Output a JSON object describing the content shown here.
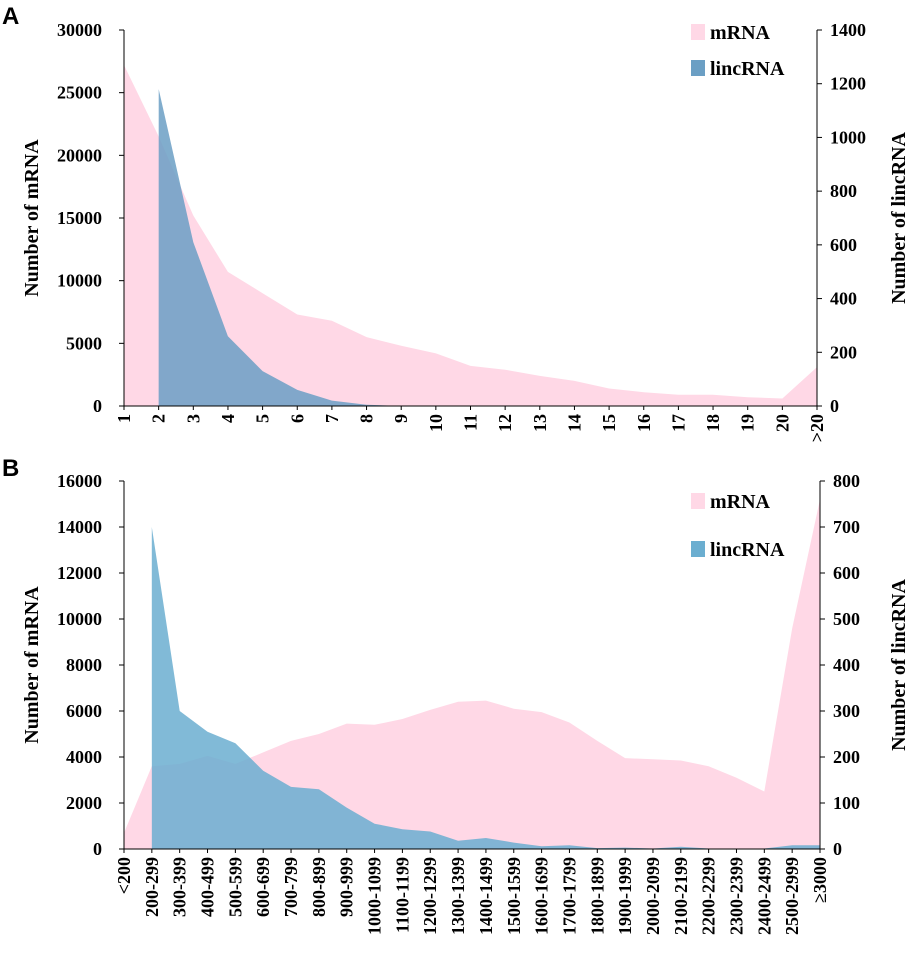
{
  "chart_data": [
    {
      "type": "area",
      "panel_label": "A",
      "categories": [
        "1",
        "2",
        "3",
        "4",
        "5",
        "6",
        "7",
        "8",
        "9",
        "10",
        "11",
        "12",
        "13",
        "14",
        "15",
        "16",
        "17",
        "18",
        "19",
        "20",
        ">20"
      ],
      "series": [
        {
          "name": "mRNA",
          "axis": "left",
          "color": "#ffd8e6",
          "values": [
            27200,
            21500,
            15200,
            10700,
            9000,
            7300,
            6800,
            5500,
            4800,
            4200,
            3200,
            2900,
            2400,
            2000,
            1400,
            1100,
            900,
            900,
            700,
            600,
            3100
          ]
        },
        {
          "name": "lincRNA",
          "axis": "right",
          "color": "#6b9fc4",
          "values": [
            null,
            1180,
            610,
            260,
            130,
            60,
            20,
            5,
            0,
            0,
            0,
            0,
            0,
            0,
            0,
            0,
            0,
            0,
            0,
            0,
            0
          ]
        }
      ],
      "ylabel_left": "Number of mRNA",
      "ylabel_right": "Number of lincRNA",
      "ylim_left": [
        0,
        30000
      ],
      "ylim_right": [
        0,
        1400
      ],
      "yticks_left": [
        "0",
        "5000",
        "10000",
        "15000",
        "20000",
        "25000",
        "30000"
      ],
      "yticks_right": [
        "0",
        "200",
        "400",
        "600",
        "800",
        "1000",
        "1200",
        "1400"
      ],
      "legend": [
        "mRNA",
        "lincRNA"
      ],
      "legend_position": "top-right"
    },
    {
      "type": "area",
      "panel_label": "B",
      "categories": [
        "<200",
        "200-299",
        "300-399",
        "400-499",
        "500-599",
        "600-699",
        "700-799",
        "800-899",
        "900-999",
        "1000-1099",
        "1100-1199",
        "1200-1299",
        "1300-1399",
        "1400-1499",
        "1500-1599",
        "1600-1699",
        "1700-1799",
        "1800-1899",
        "1900-1999",
        "2000-2099",
        "2100-2199",
        "2200-2299",
        "2300-2399",
        "2400-2499",
        "2500-2999",
        "≥3000"
      ],
      "series": [
        {
          "name": "mRNA",
          "axis": "left",
          "color": "#ffd8e6",
          "values": [
            700,
            3600,
            3700,
            4050,
            3700,
            4200,
            4700,
            5000,
            5450,
            5400,
            5650,
            6050,
            6400,
            6450,
            6100,
            5950,
            5500,
            4700,
            3950,
            3900,
            3850,
            3600,
            3100,
            2500,
            9600,
            15200
          ]
        },
        {
          "name": "lincRNA",
          "axis": "right",
          "color": "#6baed0",
          "values": [
            null,
            700,
            300,
            255,
            230,
            170,
            135,
            130,
            90,
            55,
            43,
            38,
            18,
            24,
            14,
            6,
            8,
            2,
            3,
            1,
            5,
            1,
            1,
            1,
            8,
            8
          ]
        }
      ],
      "ylabel_left": "Number of mRNA",
      "ylabel_right": "Number of lincRNA",
      "ylim_left": [
        0,
        16000
      ],
      "ylim_right": [
        0,
        800
      ],
      "yticks_left": [
        "0",
        "2000",
        "4000",
        "6000",
        "8000",
        "10000",
        "12000",
        "14000",
        "16000"
      ],
      "yticks_right": [
        "0",
        "100",
        "200",
        "300",
        "400",
        "500",
        "600",
        "700",
        "800"
      ],
      "legend": [
        "mRNA",
        "lincRNA"
      ],
      "legend_position": "top-right"
    }
  ]
}
